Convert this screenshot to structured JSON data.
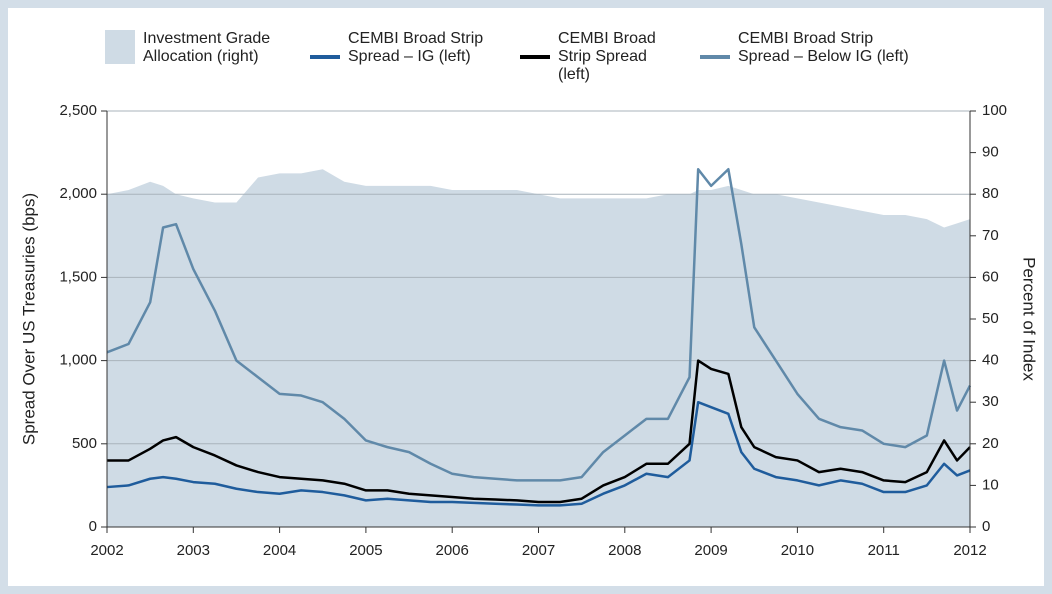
{
  "chart_data": {
    "type": "line",
    "y_label": "Spread Over US Treasuries (bps)",
    "y2_label": "Percent of Index",
    "x": [
      2002,
      2002.25,
      2002.5,
      2002.65,
      2002.8,
      2003,
      2003.25,
      2003.5,
      2003.75,
      2004,
      2004.25,
      2004.5,
      2004.75,
      2005,
      2005.25,
      2005.5,
      2005.75,
      2006,
      2006.25,
      2006.5,
      2006.75,
      2007,
      2007.25,
      2007.5,
      2007.75,
      2008,
      2008.25,
      2008.5,
      2008.75,
      2008.85,
      2009,
      2009.2,
      2009.35,
      2009.5,
      2009.75,
      2010,
      2010.25,
      2010.5,
      2010.75,
      2011,
      2011.25,
      2011.5,
      2011.7,
      2011.85,
      2012
    ],
    "series": [
      {
        "name": "Investment Grade Allocation (right)",
        "kind": "area",
        "axis": "y2",
        "color": "#cfdbe5",
        "values": [
          80,
          81,
          83,
          82,
          80,
          79,
          78,
          78,
          84,
          85,
          85,
          86,
          83,
          82,
          82,
          82,
          82,
          81,
          81,
          81,
          81,
          80,
          79,
          79,
          79,
          79,
          79,
          80,
          80,
          81,
          81,
          82,
          81,
          80,
          80,
          79,
          78,
          77,
          76,
          75,
          75,
          74,
          72,
          73,
          74
        ]
      },
      {
        "name": "CEMBI Broad Strip Spread – IG (left)",
        "kind": "line",
        "color": "#1f5c9c",
        "values": [
          240,
          250,
          290,
          300,
          290,
          270,
          260,
          230,
          210,
          200,
          220,
          210,
          190,
          160,
          170,
          160,
          150,
          150,
          145,
          140,
          135,
          130,
          130,
          140,
          200,
          250,
          320,
          300,
          400,
          750,
          720,
          680,
          450,
          350,
          300,
          280,
          250,
          280,
          260,
          210,
          210,
          250,
          380,
          310,
          340
        ]
      },
      {
        "name": "CEMBI Broad Strip Spread (left)",
        "kind": "line",
        "color": "#000000",
        "values": [
          400,
          400,
          470,
          520,
          540,
          480,
          430,
          370,
          330,
          300,
          290,
          280,
          260,
          220,
          220,
          200,
          190,
          180,
          170,
          165,
          160,
          150,
          150,
          170,
          250,
          300,
          380,
          380,
          500,
          1000,
          950,
          920,
          600,
          480,
          420,
          400,
          330,
          350,
          330,
          280,
          270,
          330,
          520,
          400,
          480
        ]
      },
      {
        "name": "CEMBI Broad Strip Spread – Below IG (left)",
        "kind": "line",
        "color": "#6089a9",
        "values": [
          1050,
          1100,
          1350,
          1800,
          1820,
          1550,
          1300,
          1000,
          900,
          800,
          790,
          750,
          650,
          520,
          480,
          450,
          380,
          320,
          300,
          290,
          280,
          280,
          280,
          300,
          450,
          550,
          650,
          650,
          900,
          2150,
          2050,
          2150,
          1700,
          1200,
          1000,
          800,
          650,
          600,
          580,
          500,
          480,
          550,
          1000,
          700,
          850
        ]
      }
    ],
    "xlim": [
      2002,
      2012
    ],
    "xticks": [
      2002,
      2003,
      2004,
      2005,
      2006,
      2007,
      2008,
      2009,
      2010,
      2011,
      2012
    ],
    "ylim": [
      0,
      2500
    ],
    "yticks": [
      0,
      500,
      {
        "value": 1000,
        "label": "1,000"
      },
      {
        "value": 1500,
        "label": "1,500"
      },
      {
        "value": 2000,
        "label": "2,000"
      },
      {
        "value": 2500,
        "label": "2,500"
      }
    ],
    "y2lim": [
      0,
      100
    ],
    "y2ticks": [
      0,
      10,
      20,
      30,
      40,
      50,
      60,
      70,
      80,
      90,
      100
    ],
    "grid": true
  }
}
